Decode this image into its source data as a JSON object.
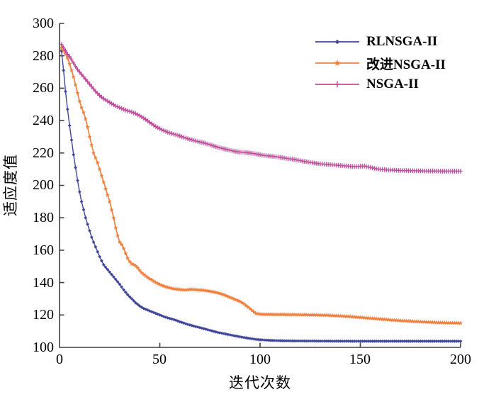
{
  "axes": {
    "x": {
      "label": "迭代次数",
      "range": [
        0,
        200
      ],
      "ticks": [
        0,
        50,
        100,
        150,
        200
      ]
    },
    "y": {
      "label": "适应度值",
      "range": [
        100,
        300
      ],
      "ticks": [
        100,
        120,
        140,
        160,
        180,
        200,
        220,
        240,
        260,
        280,
        300
      ]
    }
  },
  "legend": {
    "items": [
      {
        "label": "RLNSGA-II",
        "color": "#3f459a",
        "marker": "diamond"
      },
      {
        "label": "改进NSGA-II",
        "color": "#f28140",
        "marker": "star"
      },
      {
        "label": "NSGA-II",
        "color": "#bf4b9b",
        "marker": "plus"
      }
    ]
  },
  "style": {
    "axis_color": "#404040",
    "background": "#ffffff"
  },
  "chart_data": {
    "type": "line",
    "title": "",
    "xlabel": "迭代次数",
    "ylabel": "适应度值",
    "xlim": [
      0,
      200
    ],
    "ylim": [
      100,
      300
    ],
    "grid": false,
    "legend_position": "upper right",
    "series": [
      {
        "name": "RLNSGA-II",
        "color": "#3f459a",
        "marker": "diamond",
        "points": [
          [
            1,
            283
          ],
          [
            2,
            271
          ],
          [
            3,
            258
          ],
          [
            4,
            247
          ],
          [
            5,
            237
          ],
          [
            6,
            228
          ],
          [
            7,
            219
          ],
          [
            8,
            211
          ],
          [
            9,
            203
          ],
          [
            10,
            196
          ],
          [
            11,
            190
          ],
          [
            12,
            185
          ],
          [
            13,
            180
          ],
          [
            14,
            176
          ],
          [
            15,
            172
          ],
          [
            16,
            168
          ],
          [
            17,
            165
          ],
          [
            18,
            162
          ],
          [
            19,
            159
          ],
          [
            20,
            156
          ],
          [
            22,
            151
          ],
          [
            24,
            148
          ],
          [
            26,
            145
          ],
          [
            28,
            142
          ],
          [
            30,
            139
          ],
          [
            32,
            135.5
          ],
          [
            34,
            132.5
          ],
          [
            36,
            130
          ],
          [
            38,
            127.5
          ],
          [
            40,
            125.5
          ],
          [
            42,
            124
          ],
          [
            44,
            123
          ],
          [
            46,
            122
          ],
          [
            48,
            121
          ],
          [
            50,
            120
          ],
          [
            52,
            119
          ],
          [
            54,
            118.2
          ],
          [
            56,
            117.5
          ],
          [
            58,
            116.8
          ],
          [
            60,
            115.8
          ],
          [
            62,
            115
          ],
          [
            64,
            114.2
          ],
          [
            66,
            113.5
          ],
          [
            68,
            112.8
          ],
          [
            70,
            112.2
          ],
          [
            73,
            111.2
          ],
          [
            76,
            110.2
          ],
          [
            79,
            109.2
          ],
          [
            82,
            108.5
          ],
          [
            85,
            107.7
          ],
          [
            88,
            107
          ],
          [
            91,
            106.3
          ],
          [
            94,
            105.7
          ],
          [
            97,
            105.1
          ],
          [
            100,
            104.7
          ],
          [
            104,
            104.4
          ],
          [
            108,
            104.2
          ],
          [
            112,
            104.1
          ],
          [
            116,
            104
          ],
          [
            130,
            103.9
          ],
          [
            150,
            103.8
          ],
          [
            170,
            103.8
          ],
          [
            200,
            103.8
          ]
        ]
      },
      {
        "name": "改进NSGA-II",
        "color": "#f28140",
        "marker": "star",
        "points": [
          [
            1,
            285
          ],
          [
            2,
            283
          ],
          [
            3,
            281
          ],
          [
            4,
            278.5
          ],
          [
            5,
            275
          ],
          [
            6,
            271
          ],
          [
            7,
            267
          ],
          [
            8,
            262
          ],
          [
            9,
            257
          ],
          [
            10,
            252
          ],
          [
            11,
            248
          ],
          [
            12,
            245
          ],
          [
            13,
            241
          ],
          [
            14,
            236
          ],
          [
            15,
            230
          ],
          [
            16,
            225
          ],
          [
            17,
            220
          ],
          [
            18,
            217
          ],
          [
            19,
            214
          ],
          [
            20,
            210
          ],
          [
            21,
            206
          ],
          [
            22,
            202
          ],
          [
            23,
            198
          ],
          [
            24,
            194
          ],
          [
            25,
            190
          ],
          [
            26,
            185
          ],
          [
            27,
            180
          ],
          [
            28,
            174
          ],
          [
            29,
            169
          ],
          [
            30,
            165
          ],
          [
            31,
            163.5
          ],
          [
            32,
            161
          ],
          [
            33,
            158
          ],
          [
            34,
            155
          ],
          [
            35,
            153
          ],
          [
            36,
            151.5
          ],
          [
            37,
            151
          ],
          [
            38,
            150.3
          ],
          [
            39,
            149
          ],
          [
            40,
            147.5
          ],
          [
            41,
            146
          ],
          [
            42,
            145
          ],
          [
            43,
            144
          ],
          [
            44,
            143
          ],
          [
            45,
            142.3
          ],
          [
            46,
            141.6
          ],
          [
            47,
            140.8
          ],
          [
            48,
            140
          ],
          [
            49,
            139.4
          ],
          [
            50,
            138.8
          ],
          [
            52,
            137.8
          ],
          [
            54,
            137
          ],
          [
            56,
            136.4
          ],
          [
            58,
            136
          ],
          [
            60,
            135.7
          ],
          [
            62,
            135.5
          ],
          [
            64,
            135.6
          ],
          [
            66,
            135.8
          ],
          [
            68,
            135.7
          ],
          [
            70,
            135.4
          ],
          [
            72,
            135.2
          ],
          [
            74,
            134.9
          ],
          [
            76,
            134.4
          ],
          [
            78,
            133.9
          ],
          [
            80,
            133.3
          ],
          [
            82,
            132.4
          ],
          [
            84,
            131.4
          ],
          [
            86,
            130.4
          ],
          [
            88,
            129.3
          ],
          [
            90,
            128.3
          ],
          [
            91,
            127.6
          ],
          [
            92,
            126.8
          ],
          [
            93,
            125.8
          ],
          [
            94,
            124.8
          ],
          [
            95,
            123.8
          ],
          [
            96,
            122.8
          ],
          [
            97,
            121.8
          ],
          [
            98,
            121
          ],
          [
            99,
            120.7
          ],
          [
            100,
            120.5
          ],
          [
            104,
            120.4
          ],
          [
            108,
            120.3
          ],
          [
            112,
            120.3
          ],
          [
            116,
            120.2
          ],
          [
            120,
            120.2
          ],
          [
            124,
            120.1
          ],
          [
            128,
            120
          ],
          [
            132,
            119.9
          ],
          [
            136,
            119.7
          ],
          [
            140,
            119.4
          ],
          [
            144,
            119.1
          ],
          [
            148,
            118.7
          ],
          [
            152,
            118.3
          ],
          [
            156,
            117.9
          ],
          [
            160,
            117.5
          ],
          [
            164,
            117.1
          ],
          [
            168,
            116.7
          ],
          [
            172,
            116.4
          ],
          [
            176,
            116.1
          ],
          [
            180,
            115.8
          ],
          [
            184,
            115.6
          ],
          [
            188,
            115.4
          ],
          [
            192,
            115.2
          ],
          [
            196,
            115.1
          ],
          [
            200,
            115
          ]
        ]
      },
      {
        "name": "NSGA-II",
        "color": "#bf4b9b",
        "marker": "plus",
        "points": [
          [
            1,
            287
          ],
          [
            2,
            285
          ],
          [
            3,
            283
          ],
          [
            4,
            281
          ],
          [
            5,
            279.5
          ],
          [
            6,
            277.5
          ],
          [
            7,
            275.5
          ],
          [
            8,
            273.5
          ],
          [
            9,
            271.5
          ],
          [
            10,
            270
          ],
          [
            12,
            267
          ],
          [
            14,
            264
          ],
          [
            16,
            261
          ],
          [
            18,
            258
          ],
          [
            20,
            255.5
          ],
          [
            22,
            253.5
          ],
          [
            24,
            252
          ],
          [
            26,
            250.5
          ],
          [
            28,
            249
          ],
          [
            30,
            248
          ],
          [
            32,
            247
          ],
          [
            34,
            246
          ],
          [
            36,
            245.3
          ],
          [
            38,
            244.3
          ],
          [
            40,
            243
          ],
          [
            42,
            241.5
          ],
          [
            44,
            239.8
          ],
          [
            46,
            238
          ],
          [
            48,
            236.3
          ],
          [
            50,
            235
          ],
          [
            52,
            233.8
          ],
          [
            54,
            232.8
          ],
          [
            56,
            232
          ],
          [
            58,
            231.3
          ],
          [
            60,
            230.5
          ],
          [
            62,
            229.6
          ],
          [
            64,
            228.8
          ],
          [
            66,
            228.1
          ],
          [
            68,
            227.4
          ],
          [
            70,
            226.8
          ],
          [
            72,
            226.2
          ],
          [
            74,
            225.5
          ],
          [
            76,
            224.7
          ],
          [
            78,
            223.9
          ],
          [
            80,
            223.2
          ],
          [
            82,
            222.6
          ],
          [
            84,
            222
          ],
          [
            86,
            221.4
          ],
          [
            88,
            220.9
          ],
          [
            90,
            220.6
          ],
          [
            92,
            220.4
          ],
          [
            94,
            220.1
          ],
          [
            96,
            219.8
          ],
          [
            98,
            219.4
          ],
          [
            100,
            218.9
          ],
          [
            102,
            218.5
          ],
          [
            104,
            218.2
          ],
          [
            106,
            218
          ],
          [
            108,
            217.7
          ],
          [
            110,
            217.3
          ],
          [
            112,
            216.9
          ],
          [
            114,
            216.5
          ],
          [
            116,
            216.2
          ],
          [
            118,
            215.8
          ],
          [
            120,
            215.3
          ],
          [
            122,
            214.8
          ],
          [
            124,
            214.4
          ],
          [
            126,
            214
          ],
          [
            128,
            213.6
          ],
          [
            130,
            213.3
          ],
          [
            132,
            213.1
          ],
          [
            134,
            212.9
          ],
          [
            136,
            212.7
          ],
          [
            138,
            212.5
          ],
          [
            140,
            212.3
          ],
          [
            142,
            212.1
          ],
          [
            144,
            211.9
          ],
          [
            146,
            211.7
          ],
          [
            148,
            211.6
          ],
          [
            150,
            211.8
          ],
          [
            152,
            211.9
          ],
          [
            154,
            211.4
          ],
          [
            156,
            210.8
          ],
          [
            158,
            210.3
          ],
          [
            160,
            209.9
          ],
          [
            162,
            209.7
          ],
          [
            164,
            209.5
          ],
          [
            166,
            209.4
          ],
          [
            168,
            209.3
          ],
          [
            170,
            209.2
          ],
          [
            174,
            209.1
          ],
          [
            178,
            209
          ],
          [
            182,
            208.9
          ],
          [
            186,
            208.9
          ],
          [
            190,
            208.8
          ],
          [
            195,
            208.8
          ],
          [
            200,
            208.8
          ]
        ]
      }
    ]
  }
}
